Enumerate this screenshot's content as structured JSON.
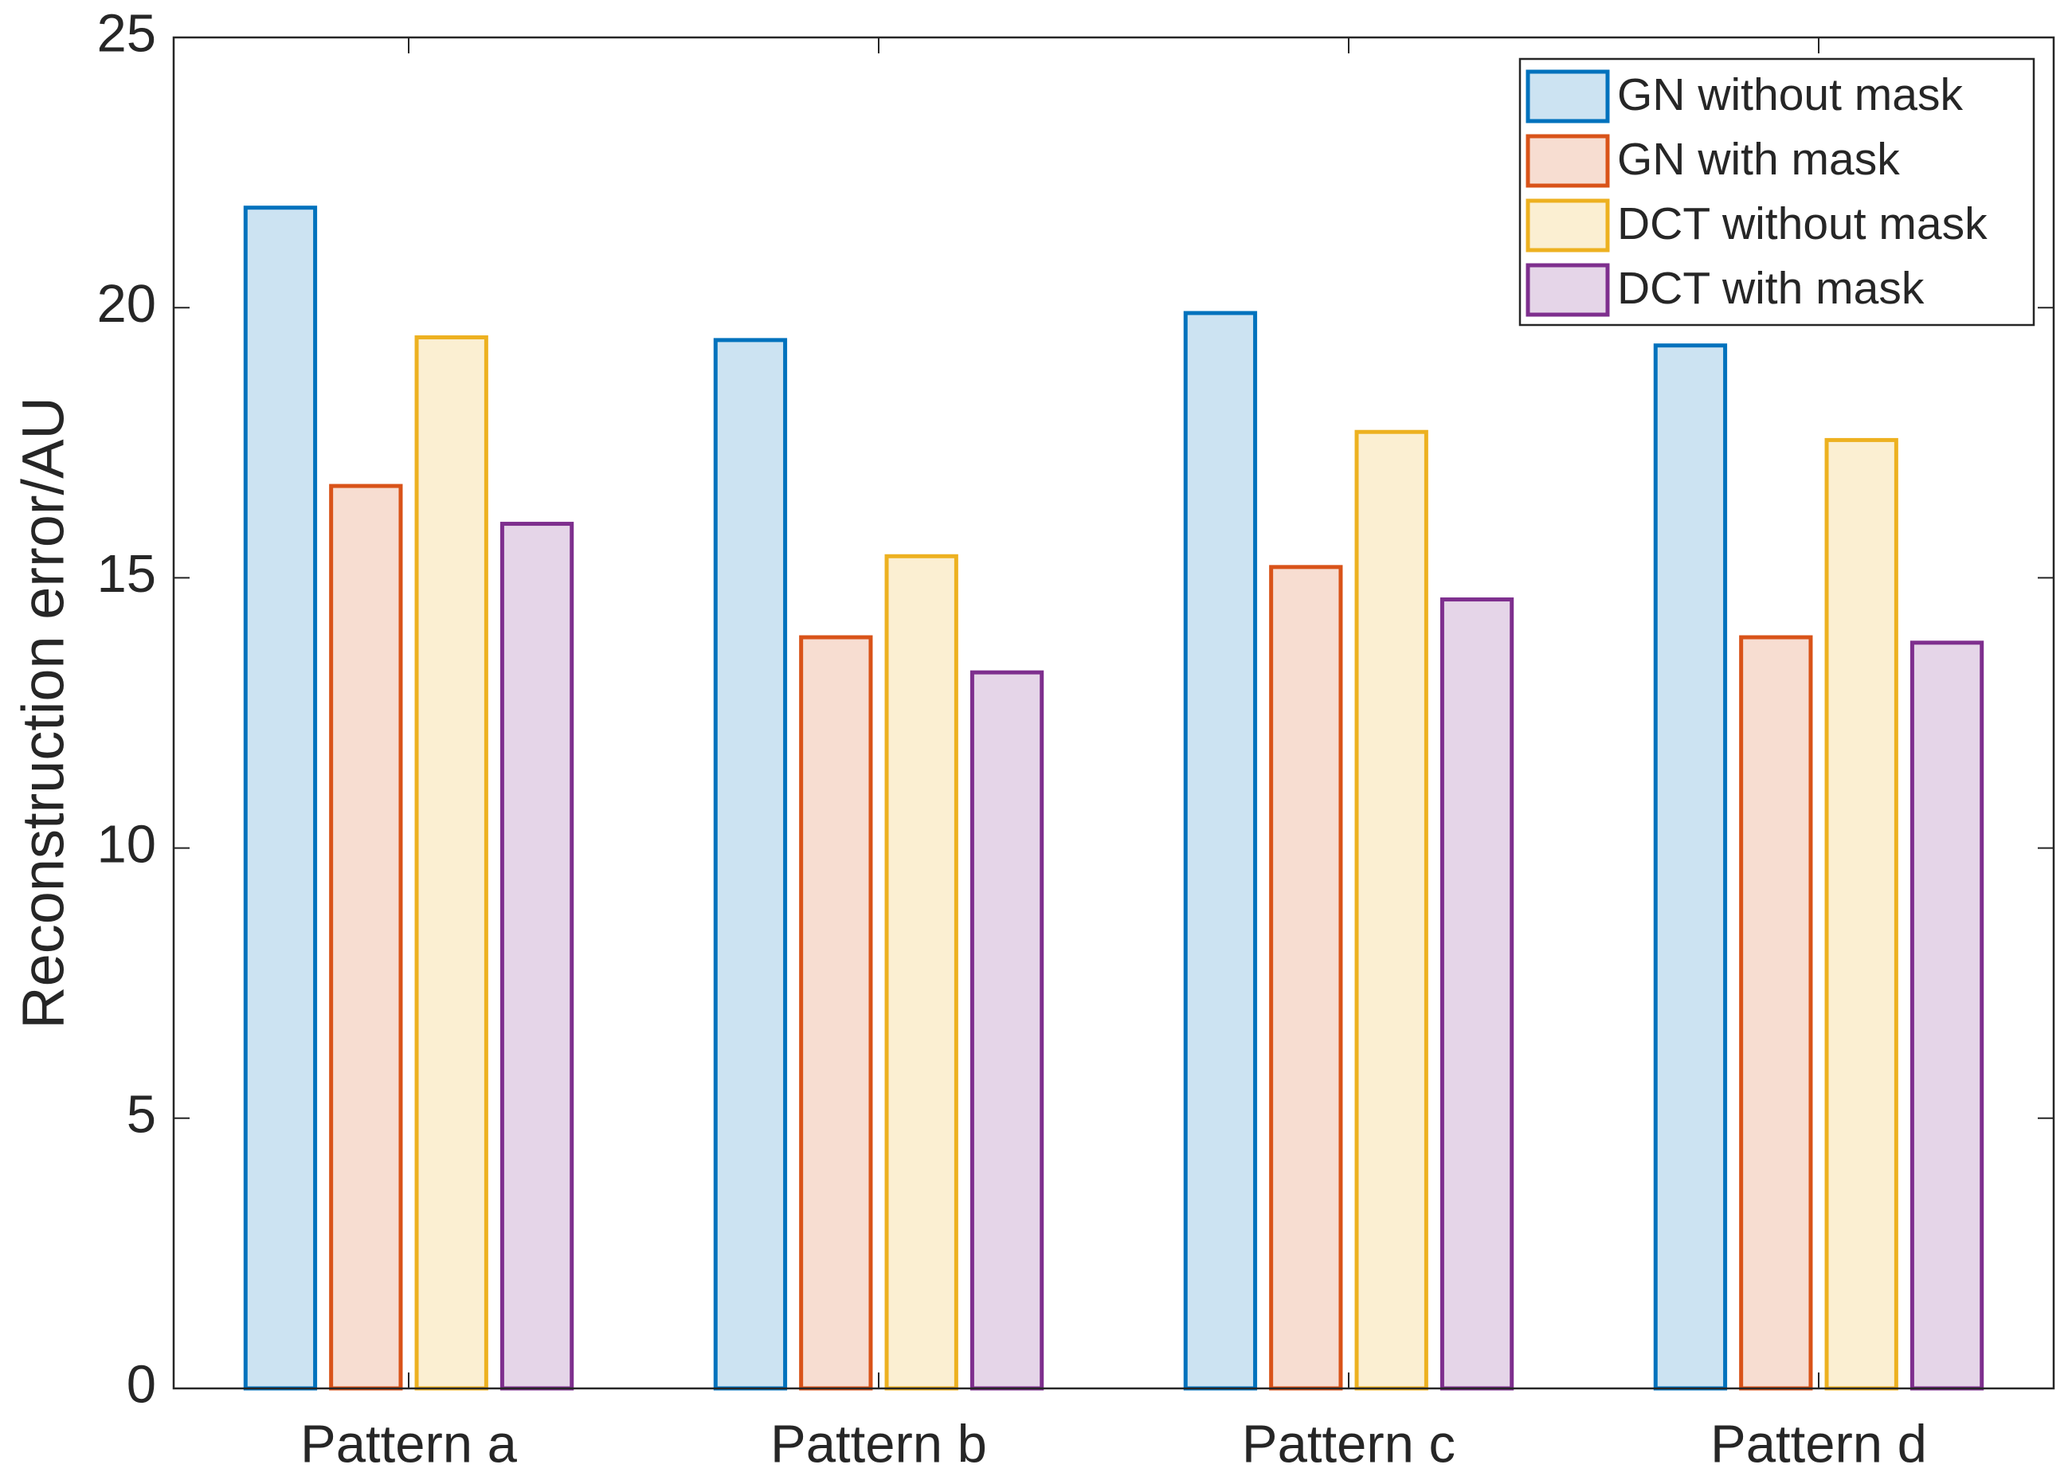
{
  "chart_data": {
    "type": "bar",
    "y_label": "Reconstruction error/AU",
    "categories": [
      "Pattern a",
      "Pattern b",
      "Pattern c",
      "Pattern d"
    ],
    "series": [
      {
        "name": "GN without mask",
        "color": "#0072BD",
        "fill": "#CCE3F2",
        "values": [
          21.85,
          19.4,
          19.9,
          19.3
        ]
      },
      {
        "name": "GN with mask",
        "color": "#D95319",
        "fill": "#F7DDD1",
        "values": [
          16.7,
          13.9,
          15.2,
          13.9
        ]
      },
      {
        "name": "DCT without mask",
        "color": "#EDB120",
        "fill": "#FBEFD2",
        "values": [
          19.45,
          15.4,
          17.7,
          17.55
        ]
      },
      {
        "name": "DCT with mask",
        "color": "#7E2F8E",
        "fill": "#E5D5E8",
        "values": [
          16.0,
          13.25,
          14.6,
          13.8
        ]
      }
    ],
    "ylim": [
      0,
      25
    ],
    "yticks": [
      0,
      5,
      10,
      15,
      20,
      25
    ],
    "grid": false,
    "legend": "northeast"
  }
}
